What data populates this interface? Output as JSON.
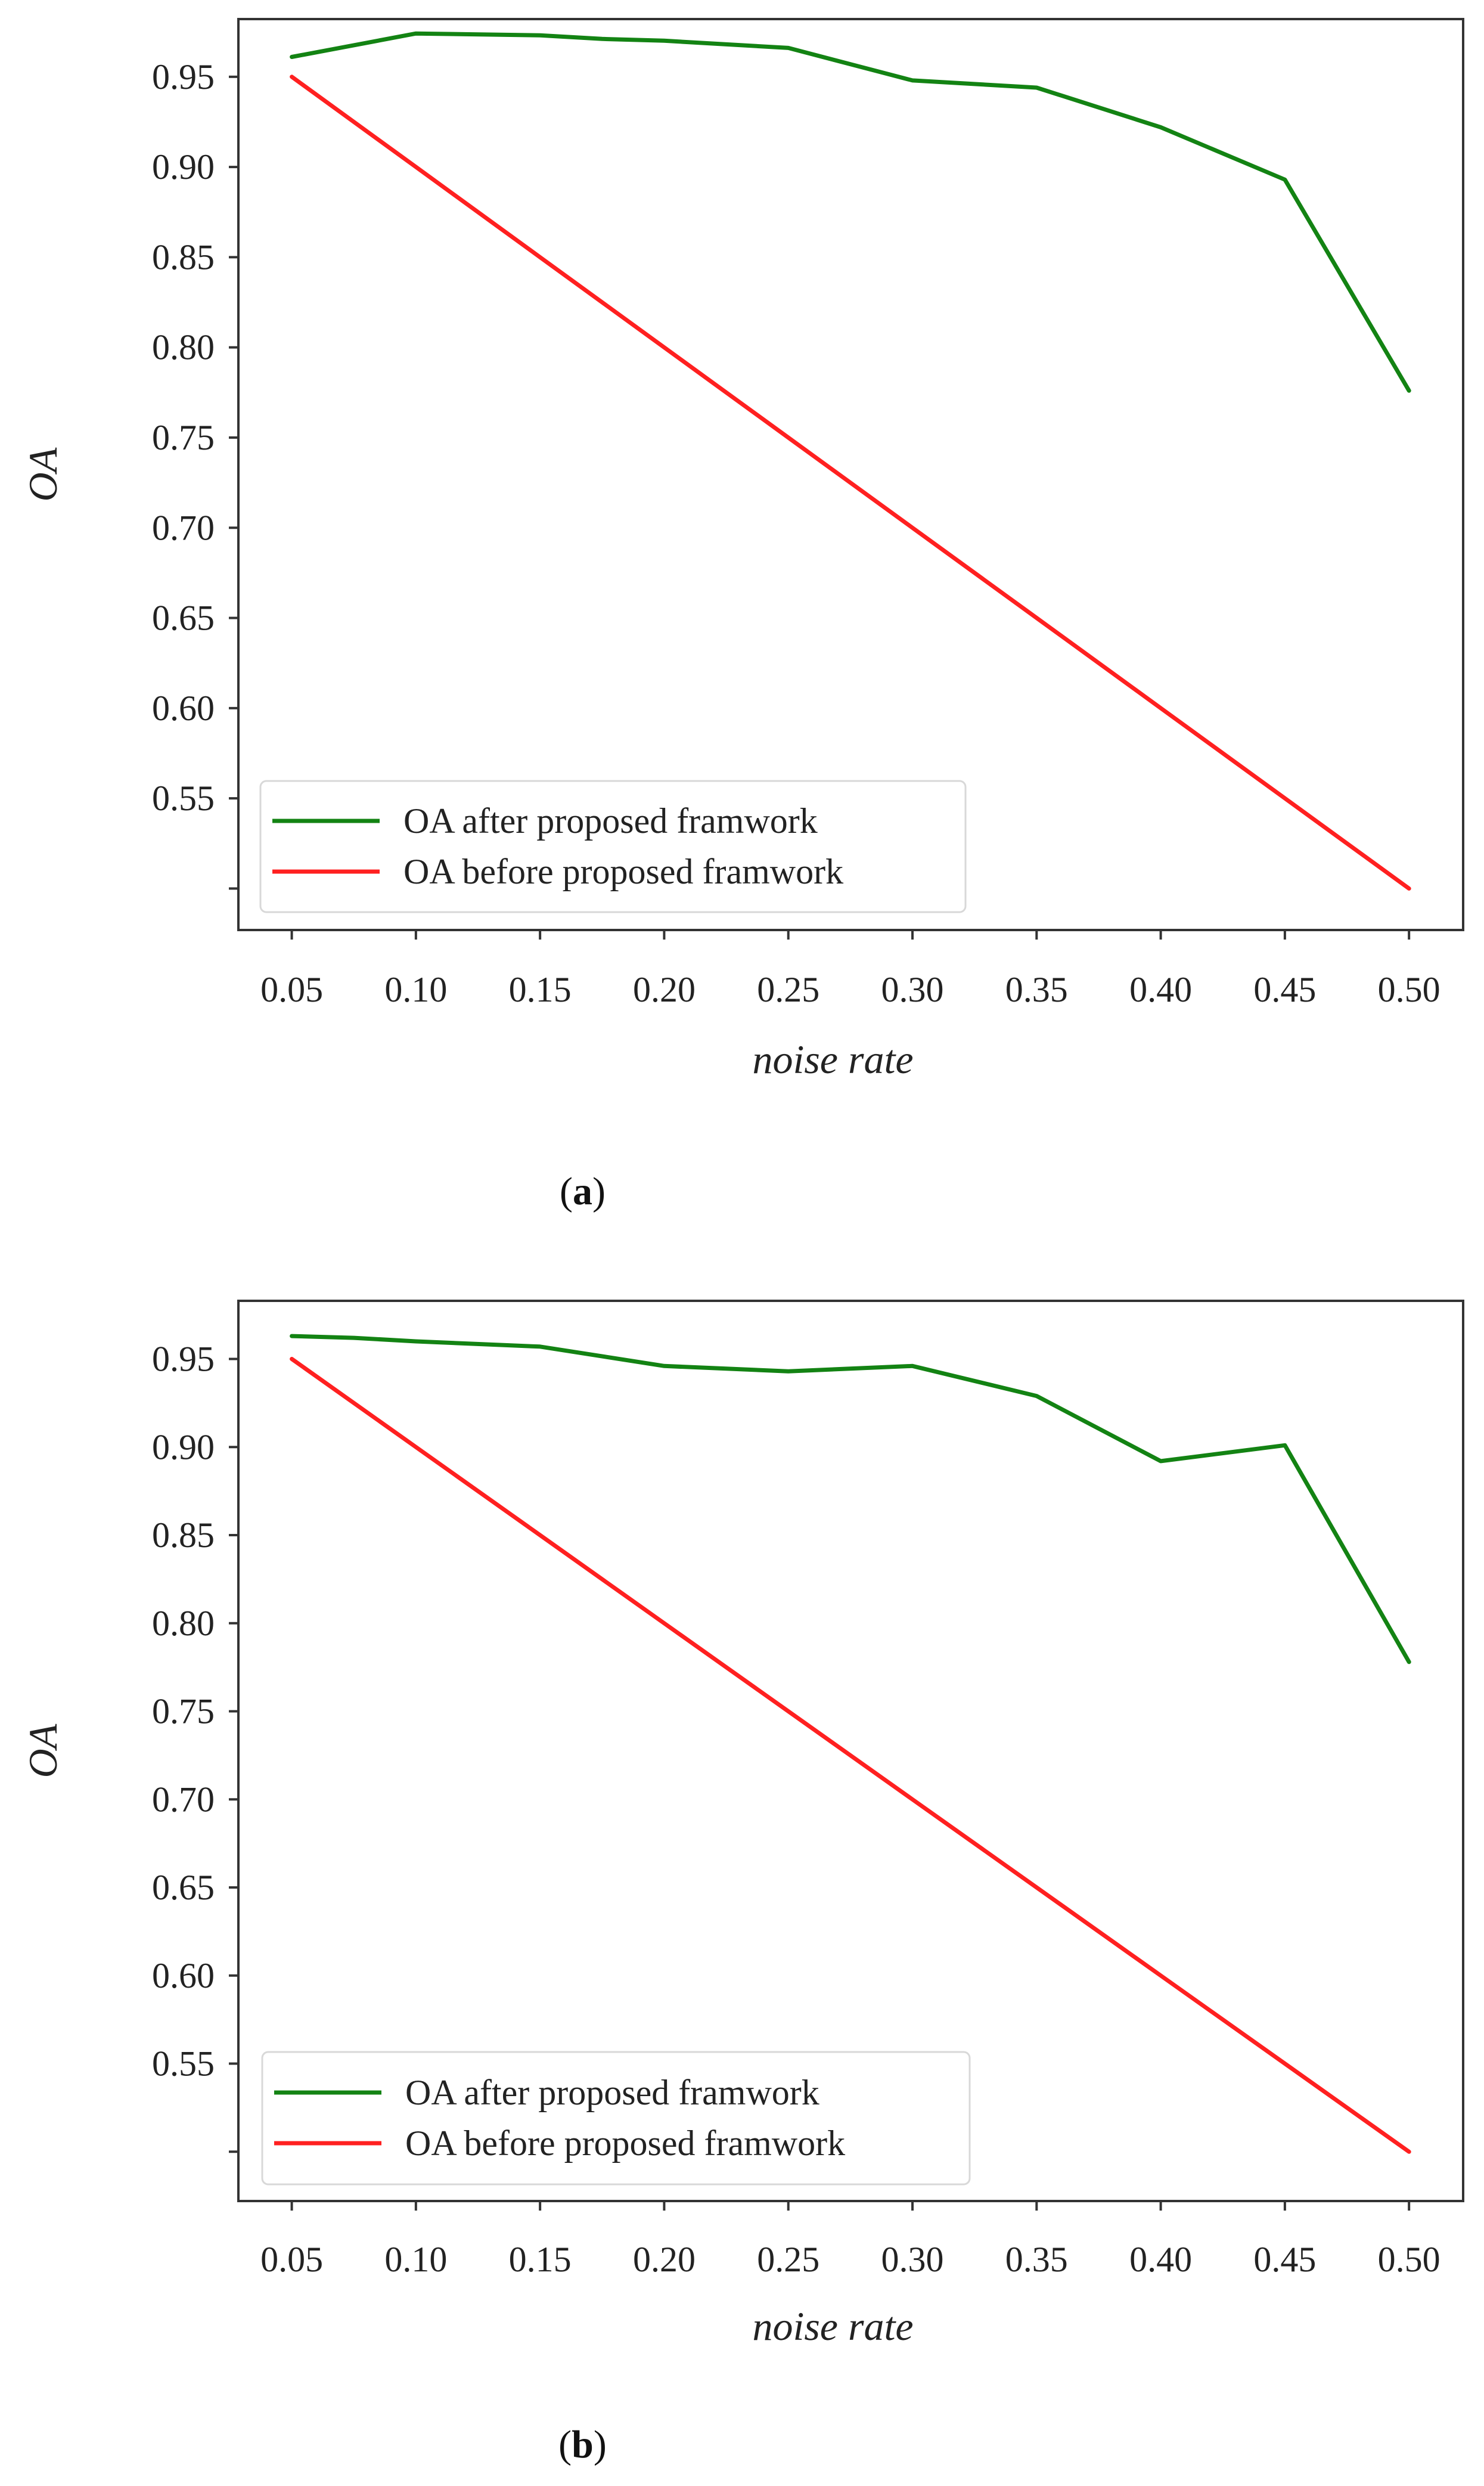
{
  "chart_data": [
    {
      "type": "line",
      "panel": "a",
      "caption": "(a)",
      "caption_letter": "a",
      "x": [
        0.05,
        0.1,
        0.15,
        0.2,
        0.25,
        0.3,
        0.35,
        0.4,
        0.45,
        0.5
      ],
      "x_tick_labels": [
        "0.05",
        "0.10",
        "0.15",
        "0.20",
        "0.25",
        "0.30",
        "0.35",
        "0.40",
        "0.45",
        "0.50"
      ],
      "y_ticks": [
        0.5,
        0.55,
        0.6,
        0.65,
        0.7,
        0.75,
        0.8,
        0.85,
        0.9,
        0.95
      ],
      "y_tick_labels": [
        "",
        "0.55",
        "0.60",
        "0.65",
        "0.70",
        "0.75",
        "0.80",
        "0.85",
        "0.90",
        "0.95"
      ],
      "ylim": [
        0.477,
        0.982
      ],
      "xlabel": "noise rate",
      "ylabel": "OA",
      "legend_position": "lower-left",
      "series": [
        {
          "name": "OA after proposed framwork",
          "color": "#138313",
          "values": [
            0.961,
            0.974,
            0.973,
            0.971,
            0.97,
            0.966,
            0.948,
            0.944,
            0.922,
            0.893,
            0.776
          ],
          "x": [
            0.05,
            0.1,
            0.15,
            0.175,
            0.2,
            0.25,
            0.3,
            0.35,
            0.4,
            0.45,
            0.5
          ]
        },
        {
          "name": "OA before proposed framwork",
          "color": "#ff2020",
          "values": [
            0.95,
            0.9,
            0.85,
            0.8,
            0.75,
            0.7,
            0.65,
            0.6,
            0.55,
            0.5
          ],
          "x": [
            0.05,
            0.1,
            0.15,
            0.2,
            0.25,
            0.3,
            0.35,
            0.4,
            0.45,
            0.5
          ]
        }
      ]
    },
    {
      "type": "line",
      "panel": "b",
      "caption": "(b)",
      "caption_letter": "b",
      "x": [
        0.05,
        0.1,
        0.15,
        0.2,
        0.25,
        0.3,
        0.35,
        0.4,
        0.45,
        0.5
      ],
      "x_tick_labels": [
        "0.05",
        "0.10",
        "0.15",
        "0.20",
        "0.25",
        "0.30",
        "0.35",
        "0.40",
        "0.45",
        "0.50"
      ],
      "y_ticks": [
        0.5,
        0.55,
        0.6,
        0.65,
        0.7,
        0.75,
        0.8,
        0.85,
        0.9,
        0.95
      ],
      "y_tick_labels": [
        "",
        "0.55",
        "0.60",
        "0.65",
        "0.70",
        "0.75",
        "0.80",
        "0.85",
        "0.90",
        "0.95"
      ],
      "ylim": [
        0.472,
        0.983
      ],
      "xlabel": "noise rate",
      "ylabel": "OA",
      "legend_position": "lower-left",
      "series": [
        {
          "name": "OA after proposed framwork",
          "color": "#138313",
          "values": [
            0.963,
            0.962,
            0.96,
            0.957,
            0.946,
            0.943,
            0.946,
            0.929,
            0.892,
            0.901,
            0.778
          ],
          "x": [
            0.05,
            0.075,
            0.1,
            0.15,
            0.2,
            0.25,
            0.3,
            0.35,
            0.4,
            0.45,
            0.5
          ]
        },
        {
          "name": "OA before proposed framwork",
          "color": "#ff2020",
          "values": [
            0.95,
            0.9,
            0.85,
            0.8,
            0.75,
            0.7,
            0.65,
            0.6,
            0.55,
            0.5
          ],
          "x": [
            0.05,
            0.1,
            0.15,
            0.2,
            0.25,
            0.3,
            0.35,
            0.4,
            0.45,
            0.5
          ]
        }
      ]
    }
  ]
}
